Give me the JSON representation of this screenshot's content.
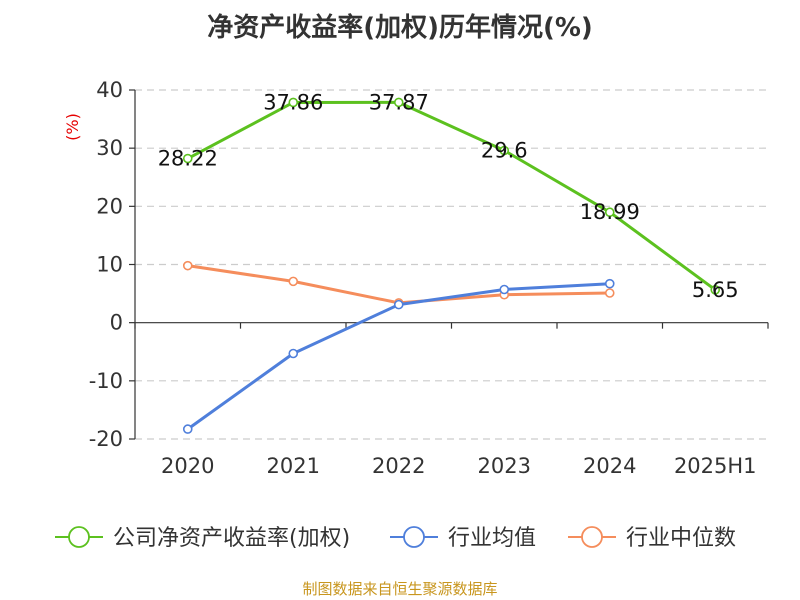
{
  "chart_data": {
    "type": "line",
    "title": "净资产收益率(加权)历年情况(%)",
    "ylabel": "(%)",
    "categories": [
      "2020",
      "2021",
      "2022",
      "2023",
      "2024",
      "2025H1"
    ],
    "ylim": [
      -20,
      40
    ],
    "yticks": [
      40,
      30,
      20,
      10,
      0,
      -10,
      -20
    ],
    "grid": true,
    "legend_position": "bottom",
    "series": [
      {
        "name": "公司净资产收益率(加权)",
        "color": "#5cc11f",
        "values": [
          28.22,
          37.86,
          37.87,
          29.6,
          18.99,
          5.65
        ],
        "labels": [
          "28.22",
          "37.86",
          "37.87",
          "29.6",
          "18.99",
          "5.65"
        ]
      },
      {
        "name": "行业均值",
        "color": "#4f7fdb",
        "values": [
          -18.3,
          -5.3,
          3.1,
          5.7,
          6.7,
          null
        ]
      },
      {
        "name": "行业中位数",
        "color": "#f58d5c",
        "values": [
          9.8,
          7.1,
          3.4,
          4.8,
          5.1,
          null
        ]
      }
    ]
  },
  "footer": {
    "source": "制图数据来自恒生聚源数据库"
  }
}
